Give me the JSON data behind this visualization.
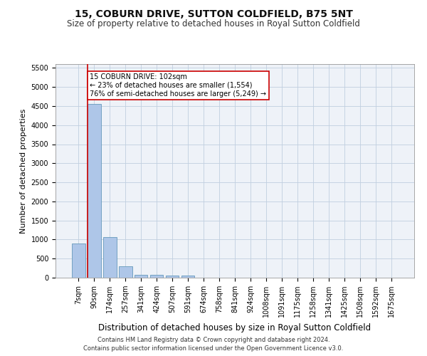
{
  "title1": "15, COBURN DRIVE, SUTTON COLDFIELD, B75 5NT",
  "title2": "Size of property relative to detached houses in Royal Sutton Coldfield",
  "xlabel": "Distribution of detached houses by size in Royal Sutton Coldfield",
  "ylabel": "Number of detached properties",
  "footnote1": "Contains HM Land Registry data © Crown copyright and database right 2024.",
  "footnote2": "Contains public sector information licensed under the Open Government Licence v3.0.",
  "categories": [
    "7sqm",
    "90sqm",
    "174sqm",
    "257sqm",
    "341sqm",
    "424sqm",
    "507sqm",
    "591sqm",
    "674sqm",
    "758sqm",
    "841sqm",
    "924sqm",
    "1008sqm",
    "1091sqm",
    "1175sqm",
    "1258sqm",
    "1341sqm",
    "1425sqm",
    "1508sqm",
    "1592sqm",
    "1675sqm"
  ],
  "values": [
    900,
    4550,
    1060,
    300,
    80,
    70,
    60,
    60,
    0,
    0,
    0,
    0,
    0,
    0,
    0,
    0,
    0,
    0,
    0,
    0,
    0
  ],
  "bar_color": "#aec6e8",
  "bar_edge_color": "#6699bb",
  "property_line_color": "#cc0000",
  "annotation_text": "15 COBURN DRIVE: 102sqm\n← 23% of detached houses are smaller (1,554)\n76% of semi-detached houses are larger (5,249) →",
  "annotation_box_color": "#ffffff",
  "annotation_box_edge": "#cc0000",
  "ylim": [
    0,
    5600
  ],
  "yticks": [
    0,
    500,
    1000,
    1500,
    2000,
    2500,
    3000,
    3500,
    4000,
    4500,
    5000,
    5500
  ],
  "background_color": "#eef2f8",
  "title1_fontsize": 10,
  "title2_fontsize": 8.5,
  "ylabel_fontsize": 8,
  "xlabel_fontsize": 8.5,
  "tick_fontsize": 7,
  "footnote_fontsize": 6
}
